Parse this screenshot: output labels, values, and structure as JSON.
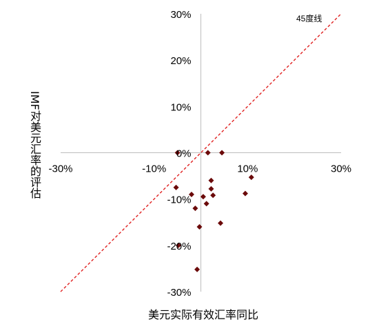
{
  "chart_data": {
    "type": "scatter",
    "xlabel": "美元实际有效汇率同比",
    "ylabel": "IMF对美元汇率的评估",
    "xlim": [
      -30,
      30
    ],
    "ylim": [
      -30,
      30
    ],
    "x_ticks": [
      "-30%",
      "-10%",
      "10%",
      "30%"
    ],
    "y_ticks": [
      "30%",
      "20%",
      "10%",
      "0%",
      "-10%",
      "-20%",
      "-30%"
    ],
    "reference_line": {
      "label": "45度线",
      "style": "dashed",
      "color": "#e02020"
    },
    "marker_color": "#6b0a0a",
    "points": [
      {
        "x": -5,
        "y": 0
      },
      {
        "x": 1.5,
        "y": 0
      },
      {
        "x": 4.5,
        "y": 0
      },
      {
        "x": -5.3,
        "y": -7.5
      },
      {
        "x": -2,
        "y": -9
      },
      {
        "x": 0.5,
        "y": -9.5
      },
      {
        "x": 2.2,
        "y": -6
      },
      {
        "x": 2.2,
        "y": -7.8
      },
      {
        "x": 2.6,
        "y": -9.2
      },
      {
        "x": 1.2,
        "y": -11
      },
      {
        "x": -1.2,
        "y": -12
      },
      {
        "x": 9.5,
        "y": -8.8
      },
      {
        "x": 10.8,
        "y": -5.3
      },
      {
        "x": -0.3,
        "y": -16
      },
      {
        "x": 4.2,
        "y": -15.2
      },
      {
        "x": -4.8,
        "y": -20
      },
      {
        "x": -0.8,
        "y": -25.2
      }
    ]
  }
}
